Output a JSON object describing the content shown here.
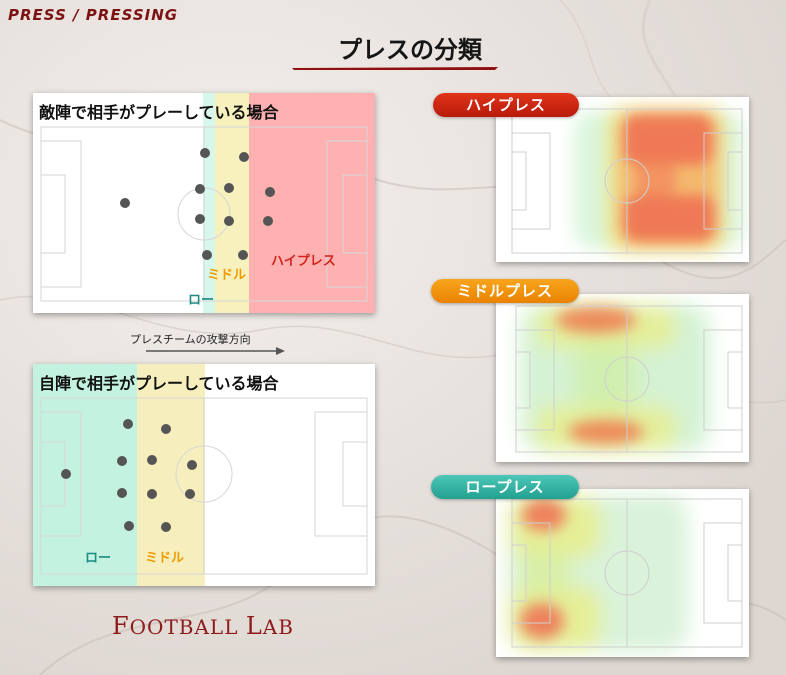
{
  "header": {
    "tag": "PRESS / PRESSING",
    "title": "プレスの分類"
  },
  "diagram_top": {
    "heading": "敵陣で相手がプレーしている場合",
    "zones": {
      "low": "ロー",
      "mid": "ミドル",
      "high": "ハイプレス"
    },
    "colors": {
      "low": "#d8f7ec",
      "mid": "#f7f1be",
      "high": "#ffb1b1"
    }
  },
  "arrow": {
    "caption": "プレスチームの攻撃方向"
  },
  "diagram_bottom": {
    "heading": "自陣で相手がプレーしている場合",
    "zones": {
      "low": "ロー",
      "mid": "ミドル"
    },
    "colors": {
      "low": "#c3f3e0",
      "mid": "#f6efbd"
    }
  },
  "heatmaps": [
    {
      "label": "ハイプレス",
      "pill_color": "#c41f0c",
      "pill_color2": "#e0341b"
    },
    {
      "label": "ミドルプレス",
      "pill_color": "#f08a00",
      "pill_color2": "#f8a51c"
    },
    {
      "label": "ロープレス",
      "pill_color": "#2aa89a",
      "pill_color2": "#4cc7b8"
    }
  ],
  "footer": {
    "logo_first": "F",
    "logo_rest1": "OOTBALL ",
    "logo_mid": "L",
    "logo_rest2": "AB"
  }
}
